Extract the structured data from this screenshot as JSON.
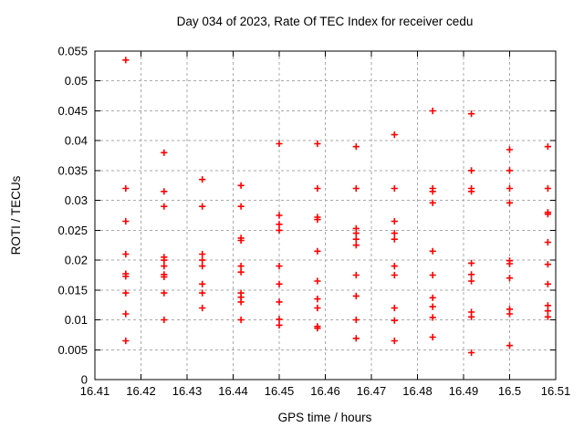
{
  "chart_data": {
    "type": "scatter",
    "title": "Day 034 of 2023, Rate Of TEC Index for receiver cedu",
    "xlabel": "GPS time / hours",
    "ylabel": "ROTI / TECUs",
    "xlim": [
      16.41,
      16.51
    ],
    "ylim": [
      0,
      0.055
    ],
    "grid": true,
    "legend": "none",
    "colors": {
      "marker": "#ff0000",
      "grid": "#aaaaaa",
      "frame": "#000000",
      "background": "#ffffff"
    },
    "marker": {
      "shape": "plus",
      "size": 7.2,
      "stroke_width": 1.6
    },
    "xticks": [
      {
        "v": 16.41,
        "label": "16.41"
      },
      {
        "v": 16.42,
        "label": "16.42"
      },
      {
        "v": 16.43,
        "label": "16.43"
      },
      {
        "v": 16.44,
        "label": "16.44"
      },
      {
        "v": 16.45,
        "label": "16.45"
      },
      {
        "v": 16.46,
        "label": "16.46"
      },
      {
        "v": 16.47,
        "label": "16.47"
      },
      {
        "v": 16.48,
        "label": "16.48"
      },
      {
        "v": 16.49,
        "label": "16.49"
      },
      {
        "v": 16.5,
        "label": "16.5"
      },
      {
        "v": 16.51,
        "label": "16.51"
      }
    ],
    "yticks": [
      {
        "v": 0,
        "label": "0"
      },
      {
        "v": 0.005,
        "label": "0.005"
      },
      {
        "v": 0.01,
        "label": "0.01"
      },
      {
        "v": 0.015,
        "label": "0.015"
      },
      {
        "v": 0.02,
        "label": "0.02"
      },
      {
        "v": 0.025,
        "label": "0.025"
      },
      {
        "v": 0.03,
        "label": "0.03"
      },
      {
        "v": 0.035,
        "label": "0.035"
      },
      {
        "v": 0.04,
        "label": "0.04"
      },
      {
        "v": 0.045,
        "label": "0.045"
      },
      {
        "v": 0.05,
        "label": "0.05"
      },
      {
        "v": 0.055,
        "label": "0.055"
      }
    ],
    "series": [
      {
        "name": "ROTI",
        "points": [
          [
            16.4167,
            0.0535
          ],
          [
            16.4167,
            0.032
          ],
          [
            16.4167,
            0.0265
          ],
          [
            16.4167,
            0.021
          ],
          [
            16.4167,
            0.0177
          ],
          [
            16.4167,
            0.0173
          ],
          [
            16.4167,
            0.0145
          ],
          [
            16.4167,
            0.011
          ],
          [
            16.4167,
            0.0065
          ],
          [
            16.425,
            0.038
          ],
          [
            16.425,
            0.0315
          ],
          [
            16.425,
            0.029
          ],
          [
            16.425,
            0.0205
          ],
          [
            16.425,
            0.02
          ],
          [
            16.425,
            0.019
          ],
          [
            16.425,
            0.0176
          ],
          [
            16.425,
            0.0172
          ],
          [
            16.425,
            0.0145
          ],
          [
            16.425,
            0.01
          ],
          [
            16.4333,
            0.0335
          ],
          [
            16.4333,
            0.029
          ],
          [
            16.4333,
            0.021
          ],
          [
            16.4333,
            0.02
          ],
          [
            16.4333,
            0.019
          ],
          [
            16.4333,
            0.016
          ],
          [
            16.4333,
            0.0145
          ],
          [
            16.4333,
            0.012
          ],
          [
            16.4417,
            0.0325
          ],
          [
            16.4417,
            0.029
          ],
          [
            16.4417,
            0.0237
          ],
          [
            16.4417,
            0.0233
          ],
          [
            16.4417,
            0.019
          ],
          [
            16.4417,
            0.018
          ],
          [
            16.4417,
            0.0145
          ],
          [
            16.4417,
            0.0138
          ],
          [
            16.4417,
            0.013
          ],
          [
            16.4417,
            0.01
          ],
          [
            16.45,
            0.0395
          ],
          [
            16.45,
            0.0275
          ],
          [
            16.45,
            0.026
          ],
          [
            16.45,
            0.025
          ],
          [
            16.45,
            0.019
          ],
          [
            16.45,
            0.016
          ],
          [
            16.45,
            0.013
          ],
          [
            16.45,
            0.0101
          ],
          [
            16.45,
            0.0091
          ],
          [
            16.4583,
            0.0395
          ],
          [
            16.4583,
            0.032
          ],
          [
            16.4583,
            0.0272
          ],
          [
            16.4583,
            0.0268
          ],
          [
            16.4583,
            0.0215
          ],
          [
            16.4583,
            0.0165
          ],
          [
            16.4583,
            0.0135
          ],
          [
            16.4583,
            0.012
          ],
          [
            16.4583,
            0.0089
          ],
          [
            16.4583,
            0.0086
          ],
          [
            16.4667,
            0.039
          ],
          [
            16.4667,
            0.032
          ],
          [
            16.4667,
            0.0253
          ],
          [
            16.4667,
            0.0245
          ],
          [
            16.4667,
            0.0235
          ],
          [
            16.4667,
            0.0225
          ],
          [
            16.4667,
            0.0175
          ],
          [
            16.4667,
            0.014
          ],
          [
            16.4667,
            0.01
          ],
          [
            16.4667,
            0.0069
          ],
          [
            16.475,
            0.041
          ],
          [
            16.475,
            0.032
          ],
          [
            16.475,
            0.0265
          ],
          [
            16.475,
            0.0245
          ],
          [
            16.475,
            0.0235
          ],
          [
            16.475,
            0.019
          ],
          [
            16.475,
            0.0175
          ],
          [
            16.475,
            0.012
          ],
          [
            16.475,
            0.0099
          ],
          [
            16.475,
            0.0065
          ],
          [
            16.4833,
            0.045
          ],
          [
            16.4833,
            0.032
          ],
          [
            16.4833,
            0.0315
          ],
          [
            16.4833,
            0.0296
          ],
          [
            16.4833,
            0.0215
          ],
          [
            16.4833,
            0.0175
          ],
          [
            16.4833,
            0.0137
          ],
          [
            16.4833,
            0.0122
          ],
          [
            16.4833,
            0.0104
          ],
          [
            16.4833,
            0.0071
          ],
          [
            16.4917,
            0.0445
          ],
          [
            16.4917,
            0.035
          ],
          [
            16.4917,
            0.032
          ],
          [
            16.4917,
            0.0315
          ],
          [
            16.4917,
            0.0195
          ],
          [
            16.4917,
            0.0176
          ],
          [
            16.4917,
            0.0165
          ],
          [
            16.4917,
            0.0113
          ],
          [
            16.4917,
            0.0105
          ],
          [
            16.4917,
            0.0045
          ],
          [
            16.5,
            0.0385
          ],
          [
            16.5,
            0.035
          ],
          [
            16.5,
            0.032
          ],
          [
            16.5,
            0.0296
          ],
          [
            16.5,
            0.0199
          ],
          [
            16.5,
            0.0194
          ],
          [
            16.5,
            0.017
          ],
          [
            16.5,
            0.0118
          ],
          [
            16.5,
            0.011
          ],
          [
            16.5,
            0.0057
          ],
          [
            16.5083,
            0.039
          ],
          [
            16.5083,
            0.032
          ],
          [
            16.5083,
            0.028
          ],
          [
            16.5083,
            0.0277
          ],
          [
            16.5083,
            0.023
          ],
          [
            16.5083,
            0.0193
          ],
          [
            16.5083,
            0.016
          ],
          [
            16.5083,
            0.0124
          ],
          [
            16.5083,
            0.0115
          ],
          [
            16.5083,
            0.0105
          ]
        ]
      }
    ]
  }
}
